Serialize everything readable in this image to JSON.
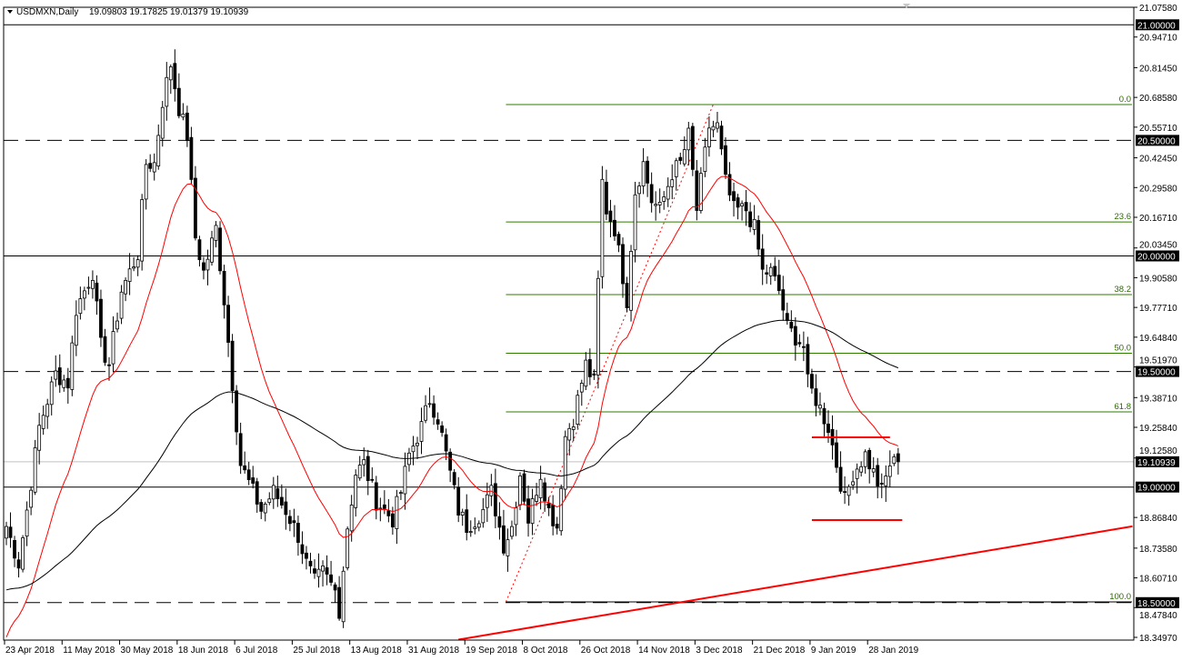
{
  "header": {
    "symbol": "USDMXN,Daily",
    "ohlc": "19.09803 19.17825 19.01379 19.10939"
  },
  "colors": {
    "background": "#ffffff",
    "bull_body": "#ffffff",
    "bear_body": "#000000",
    "candle_outline": "#000000",
    "fast_ma": "#ff0000",
    "slow_ma": "#000000",
    "fibonacci": "#2e7d00",
    "drawn_lines": "#ff0000",
    "price_line": "#c0c0c0"
  },
  "chart_data": {
    "type": "candlestick",
    "title": "USDMXN,Daily",
    "ylim": [
      18.3497,
      21.0758
    ],
    "grid": false,
    "y_ticks": [
      "21.07580",
      "20.94710",
      "20.81450",
      "20.68580",
      "20.55710",
      "20.42450",
      "20.29580",
      "20.16710",
      "20.03450",
      "19.90580",
      "19.77710",
      "19.64840",
      "19.51970",
      "19.38710",
      "19.25840",
      "19.12580",
      "18.86840",
      "18.73580",
      "18.60710",
      "18.47840",
      "18.34970"
    ],
    "x_ticks": [
      {
        "bar": 0,
        "label": "23 Apr 2018"
      },
      {
        "bar": 14,
        "label": "11 May 2018"
      },
      {
        "bar": 28,
        "label": "30 May 2018"
      },
      {
        "bar": 42,
        "label": "18 Jun 2018"
      },
      {
        "bar": 56,
        "label": "6 Jul 2018"
      },
      {
        "bar": 70,
        "label": "25 Jul 2018"
      },
      {
        "bar": 84,
        "label": "13 Aug 2018"
      },
      {
        "bar": 98,
        "label": "31 Aug 2018"
      },
      {
        "bar": 112,
        "label": "19 Sep 2018"
      },
      {
        "bar": 126,
        "label": "8 Oct 2018"
      },
      {
        "bar": 140,
        "label": "26 Oct 2018"
      },
      {
        "bar": 154,
        "label": "14 Nov 2018"
      },
      {
        "bar": 168,
        "label": "3 Dec 2018"
      },
      {
        "bar": 182,
        "label": "21 Dec 2018"
      },
      {
        "bar": 196,
        "label": "9 Jan 2019"
      },
      {
        "bar": 210,
        "label": "28 Jan 2019"
      }
    ],
    "bar_count": 218,
    "close_keypoints": [
      [
        0,
        18.83
      ],
      [
        3,
        18.67
      ],
      [
        5,
        18.9
      ],
      [
        8,
        19.26
      ],
      [
        12,
        19.49
      ],
      [
        15,
        19.45
      ],
      [
        17,
        19.77
      ],
      [
        21,
        19.93
      ],
      [
        23,
        19.61
      ],
      [
        25,
        19.53
      ],
      [
        28,
        19.85
      ],
      [
        32,
        20.01
      ],
      [
        34,
        20.4
      ],
      [
        36,
        20.4
      ],
      [
        38,
        20.67
      ],
      [
        40,
        20.83
      ],
      [
        42,
        20.64
      ],
      [
        44,
        20.52
      ],
      [
        46,
        20.08
      ],
      [
        48,
        19.93
      ],
      [
        51,
        20.12
      ],
      [
        53,
        19.81
      ],
      [
        55,
        19.45
      ],
      [
        57,
        19.1
      ],
      [
        60,
        18.98
      ],
      [
        62,
        18.9
      ],
      [
        65,
        18.98
      ],
      [
        68,
        18.9
      ],
      [
        71,
        18.79
      ],
      [
        73,
        18.67
      ],
      [
        75,
        18.59
      ],
      [
        77,
        18.63
      ],
      [
        80,
        18.55
      ],
      [
        81,
        18.47
      ],
      [
        83,
        18.83
      ],
      [
        85,
        19.06
      ],
      [
        87,
        19.1
      ],
      [
        90,
        18.94
      ],
      [
        92,
        18.9
      ],
      [
        94,
        18.86
      ],
      [
        96,
        18.98
      ],
      [
        98,
        19.14
      ],
      [
        101,
        19.26
      ],
      [
        103,
        19.38
      ],
      [
        105,
        19.3
      ],
      [
        107,
        19.14
      ],
      [
        110,
        18.9
      ],
      [
        112,
        18.83
      ],
      [
        114,
        18.86
      ],
      [
        116,
        18.9
      ],
      [
        118,
        18.98
      ],
      [
        121,
        18.75
      ],
      [
        123,
        18.83
      ],
      [
        125,
        19.06
      ],
      [
        127,
        18.86
      ],
      [
        130,
        19.06
      ],
      [
        132,
        18.9
      ],
      [
        134,
        18.83
      ],
      [
        136,
        19.22
      ],
      [
        138,
        19.3
      ],
      [
        141,
        19.53
      ],
      [
        143,
        19.45
      ],
      [
        145,
        20.32
      ],
      [
        146,
        20.2
      ],
      [
        148,
        20.12
      ],
      [
        151,
        19.81
      ],
      [
        153,
        20.28
      ],
      [
        155,
        20.4
      ],
      [
        157,
        20.24
      ],
      [
        159,
        20.2
      ],
      [
        162,
        20.36
      ],
      [
        164,
        20.4
      ],
      [
        166,
        20.52
      ],
      [
        168,
        20.2
      ],
      [
        171,
        20.56
      ],
      [
        173,
        20.56
      ],
      [
        175,
        20.32
      ],
      [
        177,
        20.2
      ],
      [
        180,
        20.2
      ],
      [
        182,
        20.12
      ],
      [
        184,
        19.93
      ],
      [
        186,
        19.93
      ],
      [
        188,
        19.85
      ],
      [
        190,
        19.69
      ],
      [
        192,
        19.65
      ],
      [
        194,
        19.61
      ],
      [
        195,
        19.45
      ],
      [
        197,
        19.38
      ],
      [
        200,
        19.26
      ],
      [
        202,
        19.1
      ],
      [
        204,
        18.94
      ],
      [
        206,
        19.06
      ],
      [
        209,
        19.14
      ],
      [
        211,
        19.06
      ],
      [
        213,
        18.98
      ],
      [
        215,
        19.1
      ],
      [
        217,
        19.10939
      ]
    ],
    "current_price": "19.10939",
    "horizontal_levels": [
      {
        "price": 21.0,
        "label": "21.00000",
        "style": "solid"
      },
      {
        "price": 20.5,
        "label": "20.50000",
        "style": "dashed"
      },
      {
        "price": 20.0,
        "label": "20.00000",
        "style": "solid"
      },
      {
        "price": 19.5,
        "label": "19.50000",
        "style": "dashed"
      },
      {
        "price": 19.0,
        "label": "19.00000",
        "style": "solid"
      },
      {
        "price": 18.5,
        "label": "18.50000",
        "style": "dashed"
      }
    ],
    "fibonacci": {
      "from_bar": 122,
      "to_bar": 172,
      "price_100": 18.503,
      "price_0": 20.655,
      "levels": [
        {
          "ratio": 0.0,
          "label": "0.0"
        },
        {
          "ratio": 23.6,
          "label": "23.6"
        },
        {
          "ratio": 38.2,
          "label": "38.2"
        },
        {
          "ratio": 50.0,
          "label": "50.0"
        },
        {
          "ratio": 61.8,
          "label": "61.8"
        },
        {
          "ratio": 100.0,
          "label": "100.0"
        }
      ]
    },
    "drawn_lines": [
      {
        "name": "range-resistance",
        "from": [
          196,
          19.215
        ],
        "to": [
          215,
          19.215
        ]
      },
      {
        "name": "range-support",
        "from": [
          196,
          18.857
        ],
        "to": [
          218,
          18.857
        ]
      },
      {
        "name": "ascending-trendline",
        "from": [
          110,
          18.34
        ],
        "to": [
          274,
          18.83
        ]
      }
    ]
  }
}
